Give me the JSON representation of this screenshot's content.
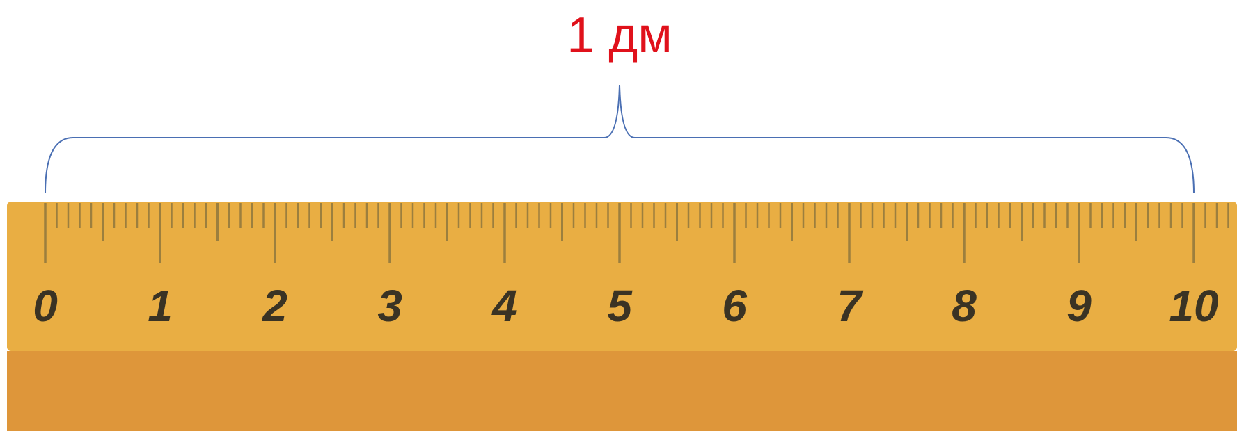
{
  "annotation": {
    "text": "1 дм",
    "color": "#e0111b",
    "brace_color": "#4a6fb3",
    "spans_from": 0,
    "spans_to": 10
  },
  "ruler": {
    "labels": [
      "0",
      "1",
      "2",
      "3",
      "4",
      "5",
      "6",
      "7",
      "8",
      "9",
      "10"
    ],
    "minor_divisions_per_unit": 10,
    "visible_units_after_last_label": 0.35,
    "colors": {
      "top_band": "#e9ae43",
      "bottom_band": "#de963a",
      "tick": "#9c7f3e",
      "number": "#3a3324"
    }
  }
}
